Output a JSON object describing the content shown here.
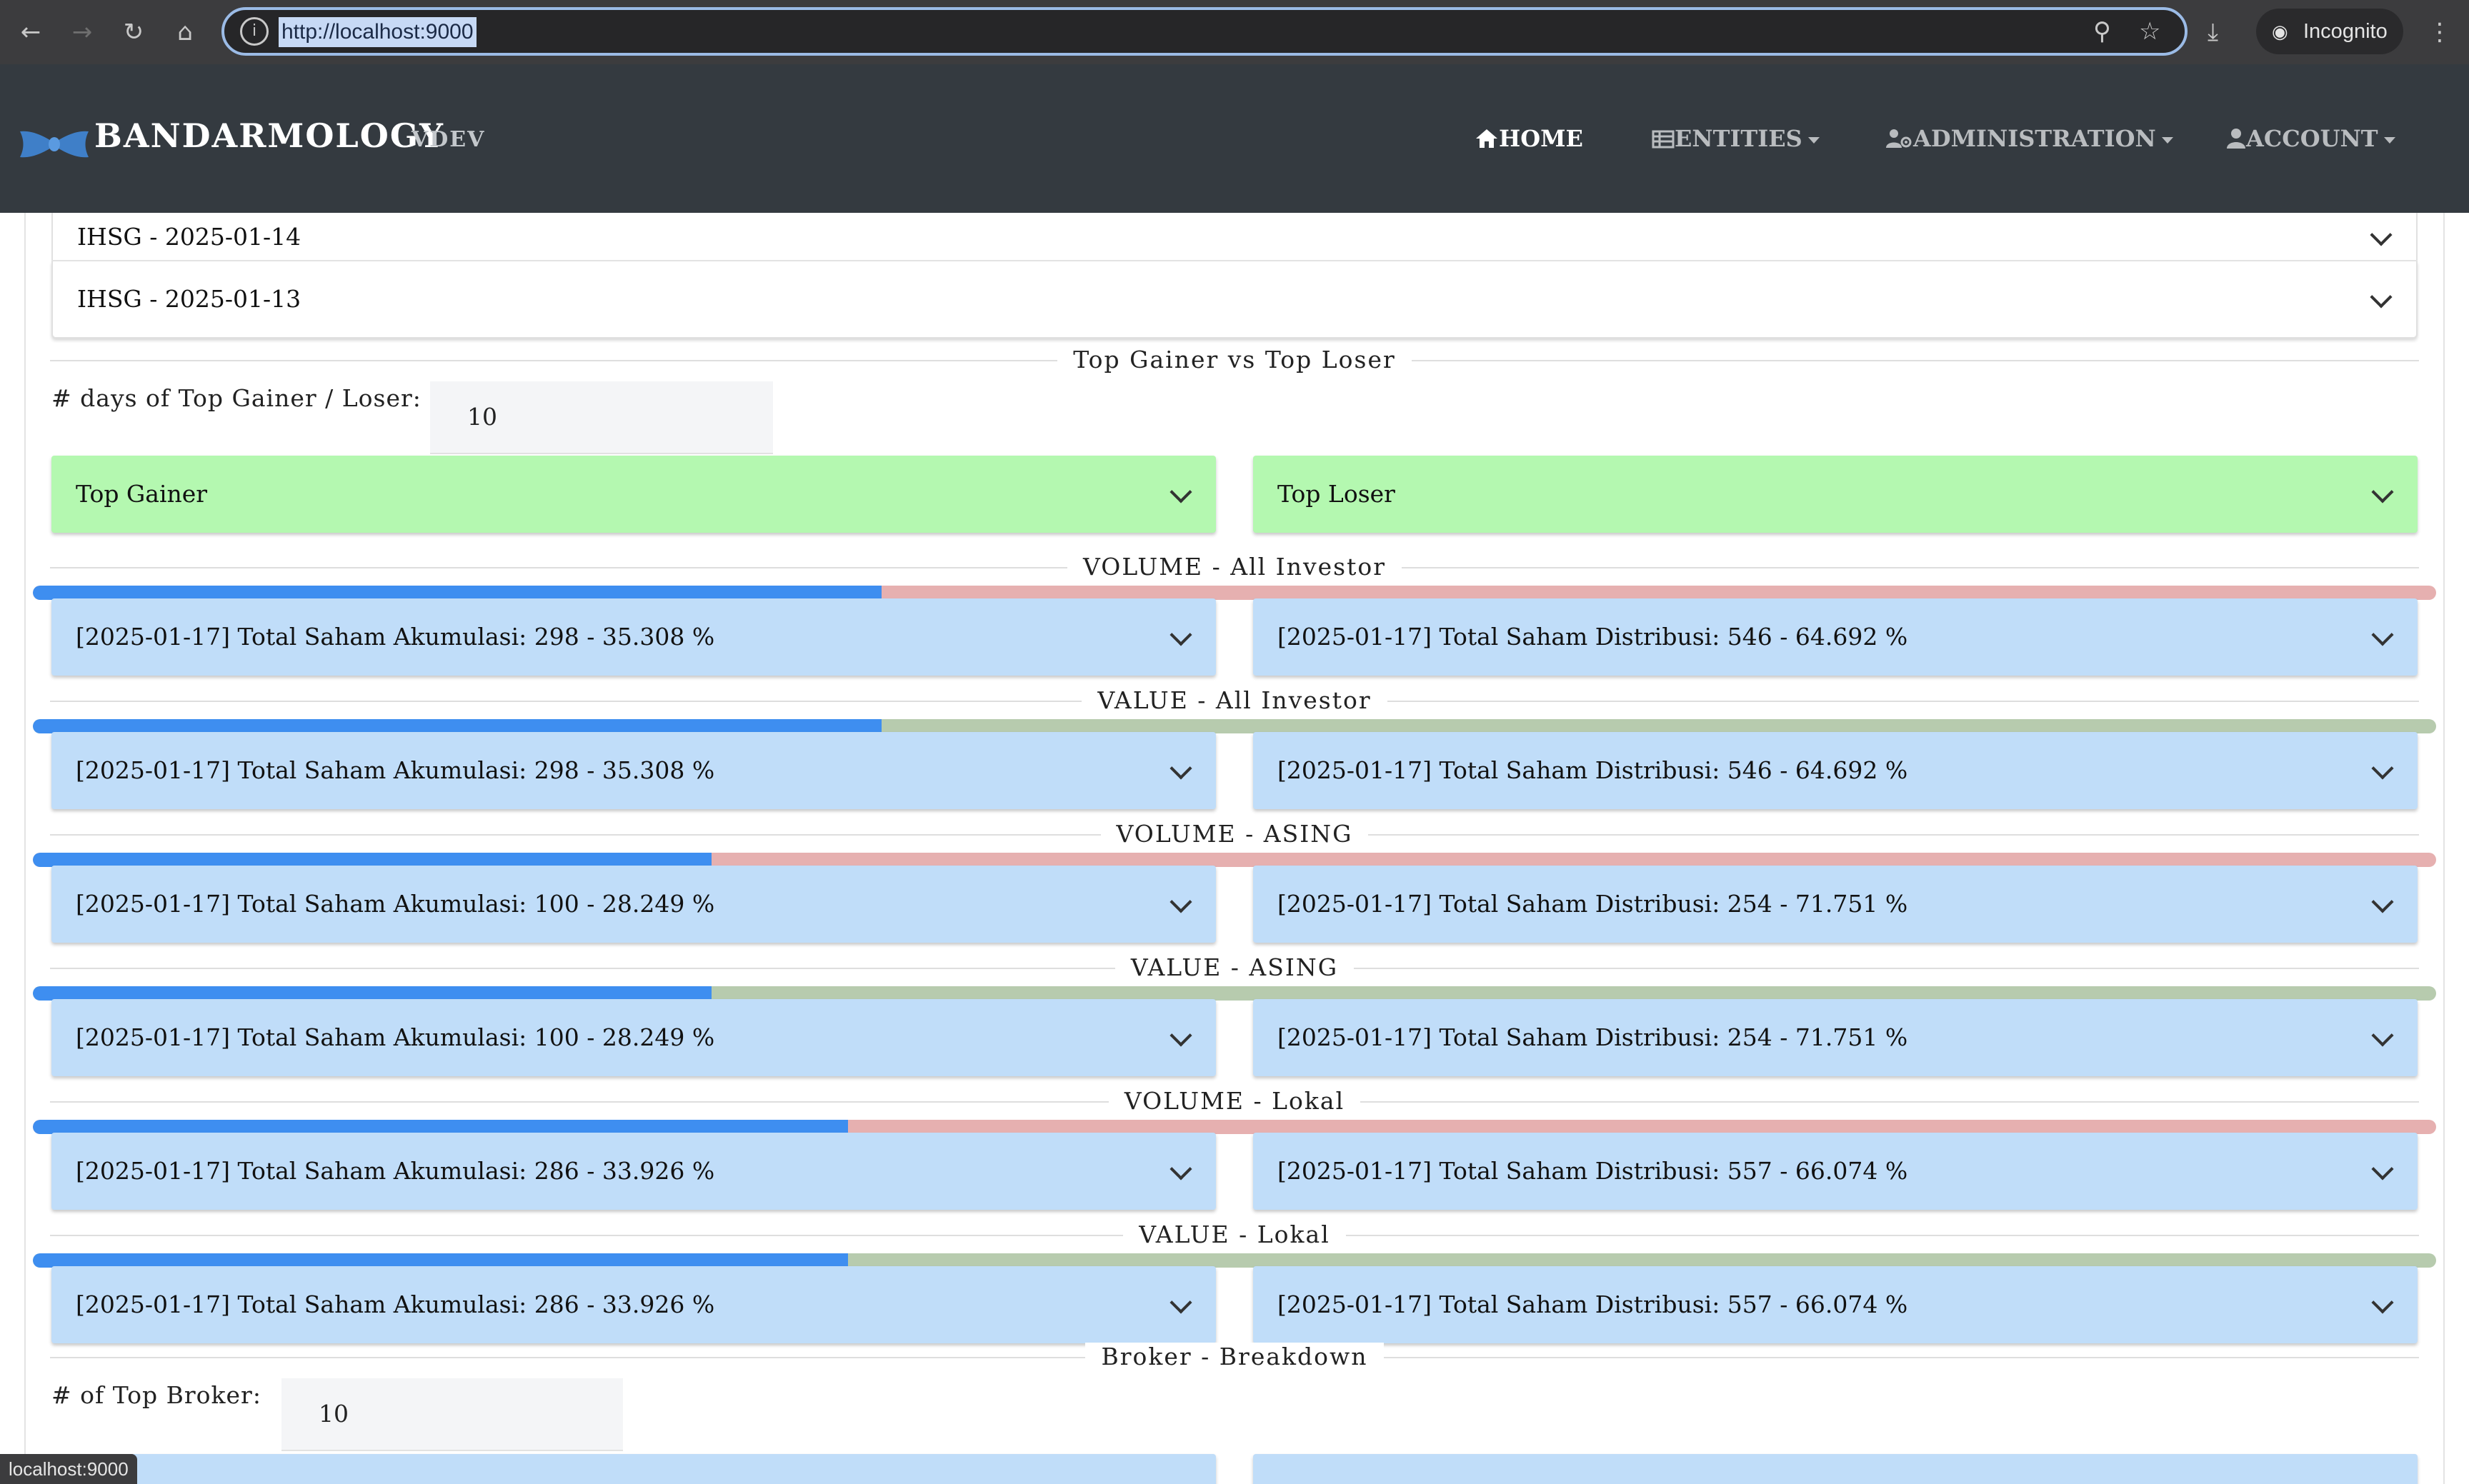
{
  "browser": {
    "url": "http://localhost:9000",
    "profile_label": "Incognito",
    "status_text": "localhost:9000"
  },
  "app": {
    "brand": "BANDARMOLOGY",
    "version": "VDEV",
    "nav": {
      "home": "HOME",
      "entities": "ENTITIES",
      "administration": "ADMINISTRATION",
      "account": "ACCOUNT"
    }
  },
  "ihsg_list": [
    "IHSG - 2025-01-14",
    "IHSG - 2025-01-13"
  ],
  "top_section": {
    "title": "Top Gainer vs Top Loser",
    "days_label": "# days of Top Gainer / Loser:",
    "days_value": "10",
    "gainer_label": "Top Gainer",
    "loser_label": "Top Loser"
  },
  "breakdowns": [
    {
      "title": "VOLUME - All Investor",
      "left": "[2025-01-17] Total Saham Akumulasi: 298 - 35.308 %",
      "right": "[2025-01-17] Total Saham Distribusi: 546 - 64.692 %",
      "akumulasi_percent": 35.308,
      "bar_remainder": "red"
    },
    {
      "title": "VALUE - All Investor",
      "left": "[2025-01-17] Total Saham Akumulasi: 298 - 35.308 %",
      "right": "[2025-01-17] Total Saham Distribusi: 546 - 64.692 %",
      "akumulasi_percent": 35.308,
      "bar_remainder": "sage"
    },
    {
      "title": "VOLUME - ASING",
      "left": "[2025-01-17] Total Saham Akumulasi: 100 - 28.249 %",
      "right": "[2025-01-17] Total Saham Distribusi: 254 - 71.751 %",
      "akumulasi_percent": 28.249,
      "bar_remainder": "red"
    },
    {
      "title": "VALUE - ASING",
      "left": "[2025-01-17] Total Saham Akumulasi: 100 - 28.249 %",
      "right": "[2025-01-17] Total Saham Distribusi: 254 - 71.751 %",
      "akumulasi_percent": 28.249,
      "bar_remainder": "sage"
    },
    {
      "title": "VOLUME - Lokal",
      "left": "[2025-01-17] Total Saham Akumulasi: 286 - 33.926 %",
      "right": "[2025-01-17] Total Saham Distribusi: 557 - 66.074 %",
      "akumulasi_percent": 33.926,
      "bar_remainder": "red"
    },
    {
      "title": "VALUE - Lokal",
      "left": "[2025-01-17] Total Saham Akumulasi: 286 - 33.926 %",
      "right": "[2025-01-17] Total Saham Distribusi: 557 - 66.074 %",
      "akumulasi_percent": 33.926,
      "bar_remainder": "sage"
    }
  ],
  "broker_section": {
    "title": "Broker - Breakdown",
    "count_label": "# of Top Broker:",
    "count_value": "10"
  },
  "colors": {
    "accent_fill": "#3e8ef0",
    "distribusi_volume": "#e6b0b0",
    "distribusi_value": "#b7cbae",
    "gainer_loser_bg": "#b4f8b0",
    "breakdown_bg": "#c0ddf9"
  }
}
